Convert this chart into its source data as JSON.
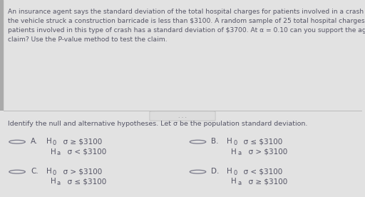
{
  "bg_top": "#e2e2e2",
  "bg_bottom": "#ebebeb",
  "bg_sep": "#d5d5d5",
  "text_color": "#555566",
  "para_text": "An insurance agent says the standard deviation of the total hospital charges for patients involved in a crash in which\nthe vehicle struck a construction barricade is less than $3100. A random sample of 25 total hospital charges for\npatients involved in this type of crash has a standard deviation of $3700. At α = 0.10 can you support the agent's\nclaim? Use the P-value method to test the claim.",
  "subheading": "Identify the null and alternative hypotheses. Let σ be the population standard deviation.",
  "options": [
    {
      "label": "A.",
      "h0_pre": "H",
      "h0_sub": "0",
      "h0_post": "  σ ≥ $3100",
      "ha_pre": "H",
      "ha_sub": "a",
      "ha_post": "  σ < $3100",
      "selected": false,
      "col": 0
    },
    {
      "label": "B.",
      "h0_pre": "H",
      "h0_sub": "0",
      "h0_post": "  σ ≤ $3100",
      "ha_pre": "H",
      "ha_sub": "a",
      "ha_post": "  σ > $3100",
      "selected": false,
      "col": 1
    },
    {
      "label": "C.",
      "h0_pre": "H",
      "h0_sub": "0",
      "h0_post": "  σ > $3100",
      "ha_pre": "H",
      "ha_sub": "a",
      "ha_post": "  σ ≤ $3100",
      "selected": false,
      "col": 0
    },
    {
      "label": "D.",
      "h0_pre": "H",
      "h0_sub": "0",
      "h0_post": "  σ < $3100",
      "ha_pre": "H",
      "ha_sub": "a",
      "ha_post": "  σ ≥ $3100",
      "selected": false,
      "col": 1
    }
  ],
  "font_size_para": 6.6,
  "font_size_sub": 6.8,
  "font_size_opt": 7.5,
  "circle_color": "#7a7a8a",
  "line_color": "#bbbbbb",
  "dots_color": "#aaaaaa"
}
